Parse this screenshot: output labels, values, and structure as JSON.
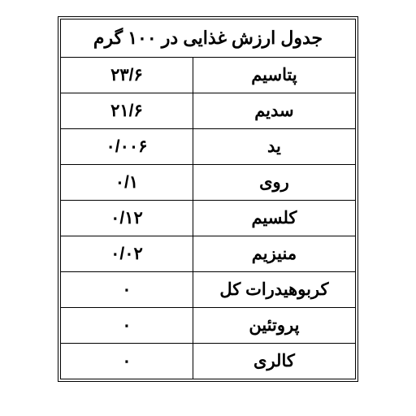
{
  "table": {
    "title": "جدول ارزش غذایی در ۱۰۰ گرم",
    "rows": [
      {
        "label": "پتاسیم",
        "value": "۲۳/۶"
      },
      {
        "label": "سدیم",
        "value": "۲۱/۶"
      },
      {
        "label": "ید",
        "value": "۰/۰۰۶"
      },
      {
        "label": "روی",
        "value": "۰/۱"
      },
      {
        "label": "کلسیم",
        "value": "۰/۱۲"
      },
      {
        "label": "منیزیم",
        "value": "۰/۰۲"
      },
      {
        "label": "کربوهیدرات کل",
        "value": "۰"
      },
      {
        "label": "پروتئین",
        "value": "۰"
      },
      {
        "label": "کالری",
        "value": "۰"
      }
    ],
    "colors": {
      "background": "#ffffff",
      "border": "#000000",
      "text": "#000000"
    },
    "font": {
      "title_size": 22,
      "cell_size": 21,
      "weight": "900"
    }
  }
}
